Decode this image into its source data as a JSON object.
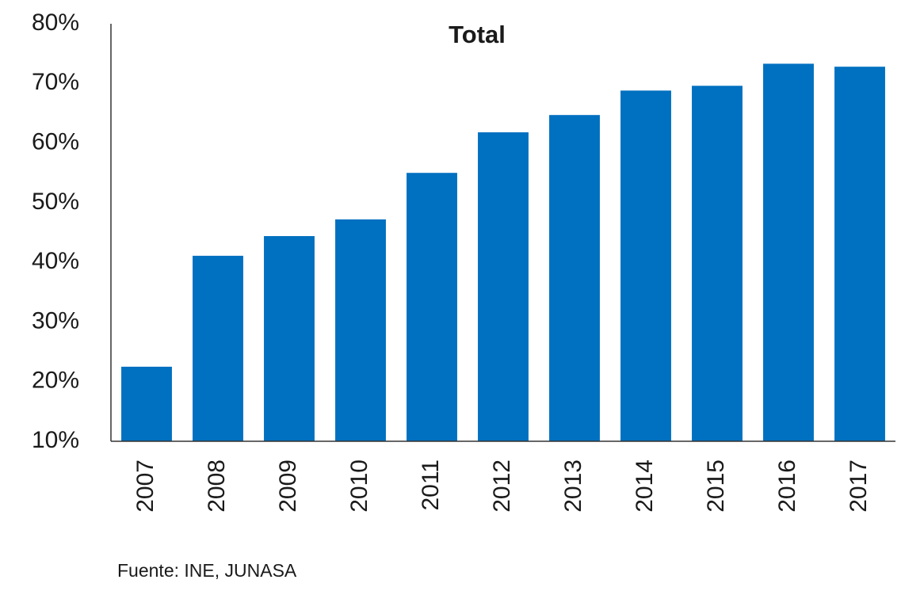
{
  "chart_data": {
    "type": "bar",
    "title": "Total",
    "categories": [
      "2007",
      "2008",
      "2009",
      "2010",
      "2011",
      "2012",
      "2013",
      "2014",
      "2015",
      "2016",
      "2017"
    ],
    "values": [
      22.5,
      41.1,
      44.4,
      47.2,
      55.0,
      61.8,
      64.7,
      68.8,
      69.6,
      73.3,
      72.8
    ],
    "color": "#0070c0",
    "ylim": [
      10,
      80
    ],
    "yticks": [
      {
        "value": 10,
        "label": "10%"
      },
      {
        "value": 20,
        "label": "20%"
      },
      {
        "value": 30,
        "label": "30%"
      },
      {
        "value": 40,
        "label": "40%"
      },
      {
        "value": 50,
        "label": "50%"
      },
      {
        "value": 60,
        "label": "60%"
      },
      {
        "value": 70,
        "label": "70%"
      },
      {
        "value": 80,
        "label": "80%"
      }
    ],
    "grid": false,
    "source": "Fuente: INE, JUNASA"
  }
}
